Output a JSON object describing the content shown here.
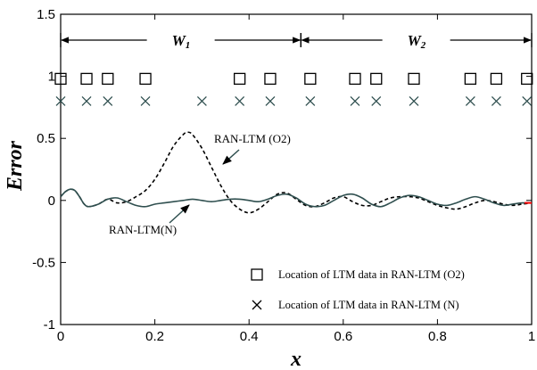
{
  "chart_data": {
    "type": "line",
    "xlabel": "x",
    "ylabel": "Error",
    "xlim": [
      0,
      1
    ],
    "ylim": [
      -1,
      1.5
    ],
    "xticks": [
      "0",
      "0.2",
      "0.4",
      "0.6",
      "0.8",
      "1"
    ],
    "yticks": [
      "-1",
      "-0.5",
      "0",
      "0.5",
      "1",
      "1.5"
    ],
    "grid": false,
    "series": [
      {
        "name": "RAN-LTM (O2)",
        "style": "dashed",
        "color": "#000000",
        "x": [
          0,
          0.01,
          0.02,
          0.03,
          0.04,
          0.05,
          0.06,
          0.08,
          0.1,
          0.12,
          0.14,
          0.16,
          0.18,
          0.2,
          0.22,
          0.24,
          0.26,
          0.27,
          0.28,
          0.3,
          0.32,
          0.34,
          0.36,
          0.38,
          0.4,
          0.42,
          0.44,
          0.46,
          0.48,
          0.5,
          0.52,
          0.54,
          0.56,
          0.58,
          0.6,
          0.62,
          0.64,
          0.66,
          0.68,
          0.7,
          0.72,
          0.74,
          0.76,
          0.78,
          0.8,
          0.82,
          0.84,
          0.86,
          0.88,
          0.9,
          0.92,
          0.94,
          0.96,
          0.98,
          1.0
        ],
        "y": [
          0.03,
          0.07,
          0.09,
          0.08,
          0.03,
          -0.03,
          -0.05,
          -0.03,
          0.01,
          -0.02,
          -0.01,
          0.03,
          0.08,
          0.17,
          0.3,
          0.44,
          0.53,
          0.55,
          0.53,
          0.42,
          0.27,
          0.12,
          0.0,
          -0.07,
          -0.1,
          -0.07,
          -0.01,
          0.05,
          0.06,
          0.01,
          -0.04,
          -0.05,
          -0.02,
          0.02,
          0.03,
          -0.01,
          -0.04,
          -0.04,
          -0.01,
          0.02,
          0.03,
          0.03,
          0.02,
          -0.01,
          -0.04,
          -0.06,
          -0.07,
          -0.05,
          -0.02,
          0.0,
          -0.01,
          -0.03,
          -0.04,
          -0.03,
          -0.02
        ]
      },
      {
        "name": "RAN-LTM(N)",
        "style": "solid",
        "color": "#2f4f4f",
        "x": [
          0,
          0.01,
          0.02,
          0.03,
          0.04,
          0.05,
          0.06,
          0.08,
          0.1,
          0.12,
          0.14,
          0.16,
          0.18,
          0.2,
          0.22,
          0.24,
          0.26,
          0.28,
          0.3,
          0.32,
          0.34,
          0.36,
          0.38,
          0.4,
          0.42,
          0.44,
          0.46,
          0.48,
          0.5,
          0.52,
          0.54,
          0.56,
          0.58,
          0.6,
          0.62,
          0.64,
          0.66,
          0.68,
          0.7,
          0.72,
          0.74,
          0.76,
          0.78,
          0.8,
          0.82,
          0.84,
          0.86,
          0.88,
          0.9,
          0.92,
          0.94,
          0.96,
          0.98,
          1.0
        ],
        "y": [
          0.03,
          0.07,
          0.09,
          0.08,
          0.03,
          -0.03,
          -0.05,
          -0.03,
          0.01,
          0.02,
          -0.01,
          -0.04,
          -0.05,
          -0.03,
          -0.02,
          -0.01,
          0.0,
          0.01,
          0.0,
          -0.01,
          0.0,
          0.01,
          0.01,
          0.0,
          -0.01,
          0.01,
          0.04,
          0.05,
          0.02,
          -0.03,
          -0.05,
          -0.04,
          0.0,
          0.04,
          0.05,
          0.02,
          -0.03,
          -0.05,
          -0.02,
          0.02,
          0.04,
          0.03,
          0.0,
          -0.03,
          -0.04,
          -0.02,
          0.01,
          0.03,
          0.01,
          -0.02,
          -0.04,
          -0.03,
          -0.02,
          -0.02
        ]
      }
    ],
    "red_segment": {
      "color": "#ff0000",
      "x": [
        0.985,
        1.0
      ],
      "y": [
        -0.02,
        -0.02
      ]
    },
    "markers": [
      {
        "name": "Location of LTM data in RAN-LTM (O2)",
        "symbol": "square",
        "y": 0.98,
        "x": [
          0.0,
          0.055,
          0.1,
          0.18,
          0.38,
          0.445,
          0.53,
          0.625,
          0.67,
          0.75,
          0.87,
          0.925,
          0.99
        ]
      },
      {
        "name": "Location of LTM data in RAN-LTM (N)",
        "symbol": "cross",
        "y": 0.8,
        "x": [
          0.0,
          0.055,
          0.1,
          0.18,
          0.3,
          0.38,
          0.445,
          0.53,
          0.625,
          0.67,
          0.75,
          0.87,
          0.925,
          0.99
        ]
      }
    ],
    "windows": [
      {
        "label": "W1",
        "x_start": 0.0,
        "x_end": 0.51
      },
      {
        "label": "W2",
        "x_start": 0.51,
        "x_end": 1.0
      }
    ],
    "annotations": [
      {
        "text": "RAN-LTM (O2)",
        "target": "RAN-LTM (O2)"
      },
      {
        "text": "RAN-LTM(N)",
        "target": "RAN-LTM(N)"
      }
    ],
    "legend": {
      "placement": "lower-right"
    }
  }
}
